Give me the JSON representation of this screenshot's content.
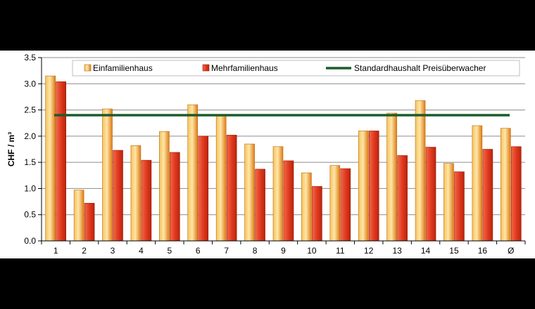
{
  "chart_data": {
    "type": "bar",
    "categories": [
      "1",
      "2",
      "3",
      "4",
      "5",
      "6",
      "7",
      "8",
      "9",
      "10",
      "11",
      "12",
      "13",
      "14",
      "15",
      "16",
      "Ø"
    ],
    "series": [
      {
        "name": "Einfamilienhaus",
        "color": "#f5a623",
        "values": [
          3.15,
          0.97,
          2.52,
          1.82,
          2.09,
          2.6,
          2.4,
          1.85,
          1.8,
          1.3,
          1.44,
          2.1,
          2.44,
          2.68,
          1.48,
          2.2,
          2.15
        ]
      },
      {
        "name": "Mehrfamilienhaus",
        "color": "#e23a1f",
        "values": [
          3.04,
          0.72,
          1.73,
          1.54,
          1.69,
          2.0,
          2.02,
          1.37,
          1.53,
          1.04,
          1.38,
          2.1,
          1.63,
          1.79,
          1.32,
          1.75,
          1.8
        ]
      }
    ],
    "reference_line": {
      "name": "Standardhaushalt Preisüberwacher",
      "value": 2.4,
      "color": "#1d5c2a"
    },
    "ylabel": "CHF / m³",
    "ylim": [
      0,
      3.5
    ],
    "yticks": [
      "0.0",
      "0.5",
      "1.0",
      "1.5",
      "2.0",
      "2.5",
      "3.0",
      "3.5"
    ],
    "grid": true,
    "legend": "top"
  }
}
